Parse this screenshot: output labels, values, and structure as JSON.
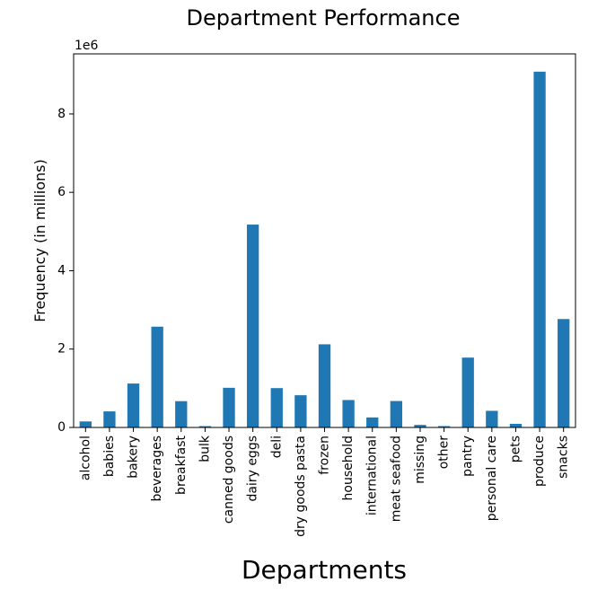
{
  "chart_data": {
    "type": "bar",
    "title": "Department Performance",
    "xlabel": "Departments",
    "ylabel": "Frequency (in millions)",
    "y_offset_label": "1e6",
    "categories": [
      "alcohol",
      "babies",
      "bakery",
      "beverages",
      "breakfast",
      "bulk",
      "canned goods",
      "dairy eggs",
      "deli",
      "dry goods pasta",
      "frozen",
      "household",
      "international",
      "meat seafood",
      "missing",
      "other",
      "pantry",
      "personal care",
      "pets",
      "produce",
      "snacks"
    ],
    "values": [
      153696,
      410392,
      1120828,
      2571901,
      670850,
      33451,
      1012074,
      5177182,
      1003834,
      822136,
      2121731,
      699857,
      255991,
      674781,
      64768,
      34411,
      1782705,
      424306,
      93060,
      9079273,
      2766406
    ],
    "ylim": [
      0,
      9533236
    ],
    "yticks": [
      0,
      2000000,
      4000000,
      6000000,
      8000000
    ],
    "ytick_labels": [
      "0",
      "2",
      "4",
      "6",
      "8"
    ],
    "bar_color": "#1f77b4",
    "grid": false,
    "legend": "none"
  }
}
